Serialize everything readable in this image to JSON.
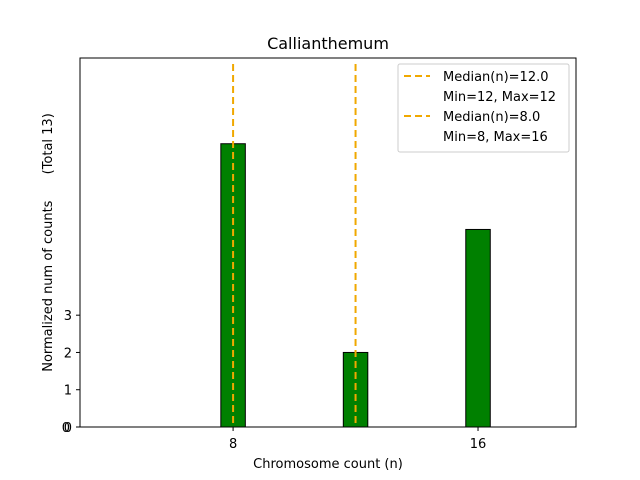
{
  "chart_data": {
    "type": "bar",
    "title": "Callianthemum",
    "xlabel": "Chromosome count (n)",
    "ylabel": "Normalized num of counts",
    "ylabel_suffix": "(Total 13)",
    "xlim": [
      3,
      19.2
    ],
    "ylim": [
      0,
      9.9
    ],
    "xticks": [
      8,
      16
    ],
    "yticks": [
      0,
      1,
      2,
      3
    ],
    "y_extra_tick": "0",
    "bars": [
      {
        "x": 8,
        "value": 7.6
      },
      {
        "x": 12,
        "value": 2
      },
      {
        "x": 16,
        "value": 5.3
      }
    ],
    "bar_width": 0.8,
    "bar_color": "#008000",
    "median_lines": [
      {
        "x": 12,
        "color": "#f0a800"
      },
      {
        "x": 8,
        "color": "#f0a800"
      }
    ],
    "legend": {
      "placement": "top-right",
      "entries": [
        {
          "label": "Median(n)=12.0",
          "line": true
        },
        {
          "label": "Min=12, Max=12",
          "line": false
        },
        {
          "label": "Median(n)=8.0",
          "line": true
        },
        {
          "label": "Min=8, Max=16",
          "line": false
        }
      ]
    },
    "grid": false
  }
}
